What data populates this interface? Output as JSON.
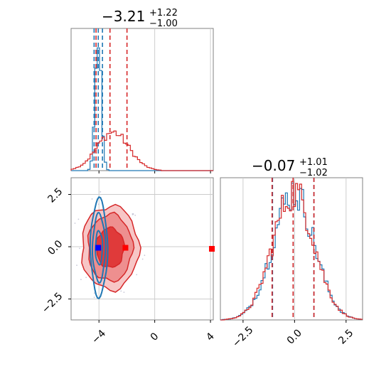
{
  "chart_data": [
    {
      "type": "histogram",
      "panel": "top-left",
      "title_parts": {
        "main": "−3.21",
        "sup": "+1.22",
        "sub": "−1.00"
      },
      "xlim": [
        -6,
        4.2
      ],
      "series": [
        {
          "color": "#1f77b4",
          "peak_x": -4.05,
          "spread": 0.22,
          "height": 0.9,
          "quantiles": [
            -4.35,
            -4.05,
            -3.75
          ]
        },
        {
          "color": "#d62728",
          "peak_x": -3.0,
          "spread": 1.15,
          "height": 0.27,
          "quantiles": [
            -4.21,
            -3.21,
            -1.99
          ]
        }
      ],
      "grid_x": [
        0,
        4
      ]
    },
    {
      "type": "scatter",
      "panel": "bottom-left",
      "xlim": [
        -6,
        4.2
      ],
      "ylim": [
        -3.5,
        3.3
      ],
      "x_ticks": [
        "−4",
        "0",
        "4"
      ],
      "x_tick_values": [
        -4,
        0,
        4
      ],
      "y_ticks": [
        "2.5",
        "0.0",
        "−2.5"
      ],
      "y_tick_values": [
        2.5,
        0.0,
        -2.5
      ],
      "markers": [
        {
          "color": "#0000ff",
          "x": -4.05,
          "y": -0.05
        },
        {
          "color": "#ff0000",
          "x": -2.1,
          "y": -0.05
        },
        {
          "color": "#ff0000",
          "x": 4.1,
          "y": -0.1
        }
      ],
      "contours": [
        {
          "color": "#d62728",
          "center": [
            -3.2,
            -0.05
          ],
          "rx": [
            1.0,
            1.6,
            2.05
          ],
          "ry": [
            0.95,
            1.6,
            2.0
          ]
        },
        {
          "color": "#1f77b4",
          "center": [
            -4.0,
            -0.05
          ],
          "rx": [
            0.25,
            0.45,
            0.6
          ],
          "ry": [
            0.8,
            1.6,
            2.3
          ]
        }
      ]
    },
    {
      "type": "histogram",
      "panel": "bottom-right",
      "title_parts": {
        "main": "−0.07",
        "sup": "+1.01",
        "sub": "−1.02"
      },
      "xlim": [
        -3.6,
        3.3
      ],
      "x_ticks": [
        "−2.5",
        "0.0",
        "2.5"
      ],
      "x_tick_values": [
        -2.5,
        0.0,
        2.5
      ],
      "series": [
        {
          "color": "#1f77b4",
          "peak_x": -0.05,
          "spread": 1.0,
          "height": 0.9,
          "quantiles": [
            -1.07,
            -0.07,
            0.94
          ]
        },
        {
          "color": "#d62728",
          "peak_x": -0.05,
          "spread": 1.0,
          "height": 0.9,
          "quantiles": [
            -1.09,
            -0.07,
            0.94
          ]
        }
      ],
      "grid_x": [
        -2.5,
        0.0,
        2.5
      ]
    }
  ]
}
